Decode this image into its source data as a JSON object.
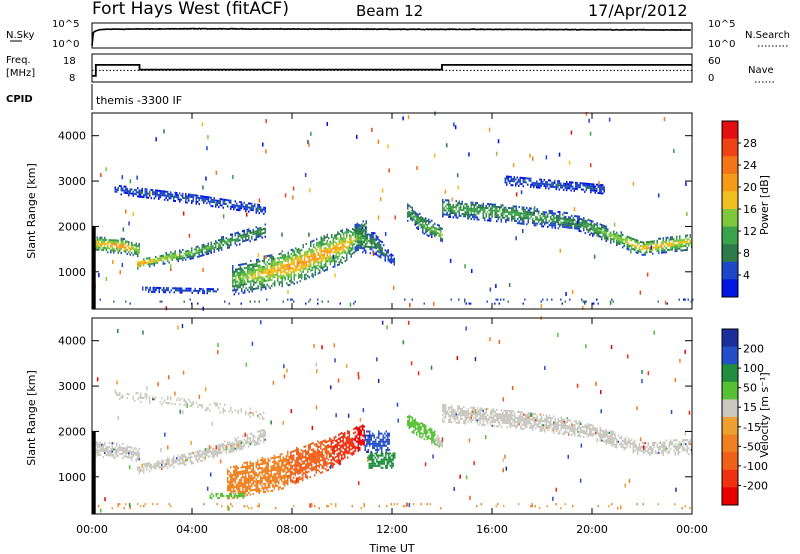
{
  "header": {
    "site": "Fort Hays West (fitACF)",
    "beam": "Beam 12",
    "date": "17/Apr/2012"
  },
  "colors": {
    "velocity_legend": [
      "#1a2f9c",
      "#234fc9",
      "#1f8e3e",
      "#57c136",
      "#c8c8c0",
      "#f0a030",
      "#f08020",
      "#f06018",
      "#f03010",
      "#e80000"
    ],
    "power_legend": [
      "#0015e0",
      "#1e46c8",
      "#2e7a4a",
      "#3aa24a",
      "#7ec83c",
      "#f0c020",
      "#f59b1a",
      "#f37518",
      "#ee4415",
      "#e20e10"
    ]
  },
  "chart_data": [
    {
      "type": "line",
      "panel": "noise",
      "left_label": "N.Sky",
      "right_label": "N.Search",
      "left_ticks": [
        "10^5",
        "10^0"
      ],
      "right_ticks": [
        "10^5",
        "10^0"
      ],
      "yscale": "log",
      "ylim": [
        1,
        100000
      ],
      "xlim": [
        0,
        24
      ],
      "series": [
        {
          "style": "solid",
          "x": [
            0,
            0.25,
            0.5,
            2,
            4,
            6,
            8,
            10,
            12,
            14,
            16,
            18,
            20,
            22,
            24
          ],
          "y": [
            1,
            15000,
            25000,
            30000,
            35000,
            32000,
            30000,
            28000,
            27000,
            25000,
            24000,
            22000,
            20000,
            18000,
            16000
          ]
        },
        {
          "style": "dotted",
          "x": [
            0,
            0.25,
            0.5,
            2,
            4,
            6,
            8,
            10,
            12,
            14,
            16,
            18,
            20,
            22,
            24
          ],
          "y": [
            1,
            15000,
            22000,
            26000,
            28000,
            26000,
            24000,
            22000,
            21000,
            20000,
            19000,
            18000,
            17000,
            16000,
            15000
          ]
        }
      ]
    },
    {
      "type": "line",
      "panel": "frequency",
      "left_label": "Freq.",
      "left_unit": "[MHz]",
      "right_label": "Nave",
      "left_ticks": [
        "18",
        "8"
      ],
      "right_ticks": [
        "60",
        "0"
      ],
      "xlim": [
        0,
        24
      ],
      "series": [
        {
          "style": "solid",
          "x": [
            0,
            0.15,
            0.15,
            1.9,
            1.9,
            14.0,
            14.0,
            24
          ],
          "y": [
            8,
            8,
            15,
            15,
            12,
            12,
            15,
            15
          ]
        },
        {
          "style": "dotted",
          "x": [
            0,
            24
          ],
          "y": [
            11.5,
            11.5
          ]
        }
      ]
    },
    {
      "type": "text",
      "panel": "cpid",
      "label": "CPID",
      "value": "themis -3300 IF"
    },
    {
      "type": "heatmap",
      "panel": "power",
      "ylabel": "Slant Range [km]",
      "yticks": [
        1000,
        2000,
        3000,
        4000
      ],
      "ylim": [
        180,
        4500
      ],
      "xlim": [
        0,
        24
      ],
      "colorbar": {
        "label": "Power [dB]",
        "ticks": [
          4,
          8,
          12,
          16,
          20,
          24,
          28
        ],
        "range": [
          0,
          32
        ]
      },
      "bands": [
        {
          "x": [
            0.0,
            1.2,
            1.9
          ],
          "r": [
            1600,
            1550,
            1450
          ],
          "w": [
            350,
            320,
            280
          ],
          "v": [
            18,
            22,
            16
          ]
        },
        {
          "x": [
            1.8,
            4.0,
            6.9
          ],
          "r": [
            1150,
            1400,
            1900
          ],
          "w": [
            200,
            250,
            300
          ],
          "v": [
            22,
            14,
            10
          ]
        },
        {
          "x": [
            0.9,
            4.0,
            6.9
          ],
          "r": [
            2800,
            2600,
            2350
          ],
          "w": [
            200,
            220,
            200
          ],
          "v": [
            6,
            6,
            6
          ]
        },
        {
          "x": [
            5.6,
            8.0,
            10.0,
            11.0
          ],
          "r": [
            800,
            1100,
            1550,
            1850
          ],
          "w": [
            650,
            800,
            750,
            550
          ],
          "v": [
            14,
            22,
            20,
            14
          ]
        },
        {
          "x": [
            10.5,
            11.3,
            12.1
          ],
          "r": [
            1750,
            1600,
            1200
          ],
          "w": [
            650,
            450,
            250
          ],
          "v": [
            12,
            10,
            6
          ]
        },
        {
          "x": [
            12.6,
            13.3,
            14.0
          ],
          "r": [
            2300,
            2000,
            1800
          ],
          "w": [
            400,
            400,
            300
          ],
          "v": [
            10,
            12,
            16
          ]
        },
        {
          "x": [
            14.0,
            17.0,
            19.5,
            22.0,
            24.0
          ],
          "r": [
            2400,
            2250,
            2050,
            1500,
            1650
          ],
          "w": [
            400,
            400,
            350,
            300,
            350
          ],
          "v": [
            12,
            12,
            10,
            20,
            18
          ]
        },
        {
          "x": [
            16.5,
            20.5
          ],
          "r": [
            3000,
            2800
          ],
          "w": [
            200,
            200
          ],
          "v": [
            6,
            6
          ]
        },
        {
          "x": [
            2.0,
            5.0
          ],
          "r": [
            600,
            550
          ],
          "w": [
            120,
            100
          ],
          "v": [
            6,
            6
          ]
        },
        {
          "x": [
            0.0,
            24.0
          ],
          "r": [
            330,
            330
          ],
          "w": [
            110,
            110
          ],
          "v": [
            8,
            8
          ],
          "p": 0.08
        }
      ],
      "features": [
        {
          "x0": 0.0,
          "x1": 0.15,
          "r0": 180,
          "r1": 2000,
          "color": "#000000"
        }
      ]
    },
    {
      "type": "heatmap",
      "panel": "velocity",
      "ylabel": "Slant Range [km]",
      "xlabel": "Time UT",
      "yticks": [
        1000,
        2000,
        3000,
        4000
      ],
      "xticks": [
        "00:00",
        "04:00",
        "08:00",
        "12:00",
        "16:00",
        "20:00",
        "00:00"
      ],
      "xtick_values": [
        0,
        4,
        8,
        12,
        16,
        20,
        24
      ],
      "ylim": [
        180,
        4500
      ],
      "xlim": [
        0,
        24
      ],
      "colorbar": {
        "label": "Velocity [m s⁻¹]",
        "ticks": [
          200,
          100,
          50,
          15,
          -15,
          -50,
          -100,
          -200
        ],
        "range": [
          -250,
          250
        ]
      },
      "bands": [
        {
          "x": [
            0.0,
            1.2,
            1.9
          ],
          "r": [
            1600,
            1550,
            1450
          ],
          "w": [
            350,
            320,
            280
          ],
          "v": [
            0,
            0,
            0
          ]
        },
        {
          "x": [
            1.8,
            4.0,
            6.9
          ],
          "r": [
            1150,
            1400,
            1900
          ],
          "w": [
            200,
            250,
            300
          ],
          "v": [
            0,
            0,
            0
          ]
        },
        {
          "x": [
            0.9,
            4.0,
            6.9
          ],
          "r": [
            2800,
            2600,
            2350
          ],
          "w": [
            200,
            220,
            200
          ],
          "v": [
            0,
            0,
            0
          ],
          "p": 0.35
        },
        {
          "x": [
            5.4,
            7.5,
            9.5,
            10.9
          ],
          "r": [
            850,
            1100,
            1500,
            1900
          ],
          "w": [
            700,
            800,
            700,
            500
          ],
          "v": [
            -60,
            -90,
            -150,
            -220
          ]
        },
        {
          "x": [
            10.9,
            11.9
          ],
          "r": [
            1750,
            1750
          ],
          "w": [
            450,
            450
          ],
          "v": [
            200,
            180
          ]
        },
        {
          "x": [
            11.0,
            12.1
          ],
          "r": [
            1350,
            1350
          ],
          "w": [
            350,
            350
          ],
          "v": [
            70,
            60
          ]
        },
        {
          "x": [
            12.6,
            13.5,
            14.0
          ],
          "r": [
            2200,
            1900,
            1700
          ],
          "w": [
            350,
            350,
            300
          ],
          "v": [
            30,
            25,
            0
          ]
        },
        {
          "x": [
            14.0,
            17.0,
            19.5,
            22.0,
            24.0
          ],
          "r": [
            2400,
            2250,
            2050,
            1600,
            1650
          ],
          "w": [
            400,
            400,
            350,
            300,
            350
          ],
          "v": [
            0,
            0,
            0,
            0,
            0
          ]
        },
        {
          "x": [
            4.7,
            6.1
          ],
          "r": [
            560,
            560
          ],
          "w": [
            100,
            100
          ],
          "v": [
            40,
            40
          ]
        },
        {
          "x": [
            0.0,
            24.0
          ],
          "r": [
            340,
            340
          ],
          "w": [
            110,
            110
          ],
          "v": [
            -50,
            -50
          ],
          "p": 0.1
        }
      ],
      "features": [
        {
          "x0": 0.0,
          "x1": 0.15,
          "r0": 180,
          "r1": 2000,
          "color": "#000000"
        }
      ]
    }
  ]
}
